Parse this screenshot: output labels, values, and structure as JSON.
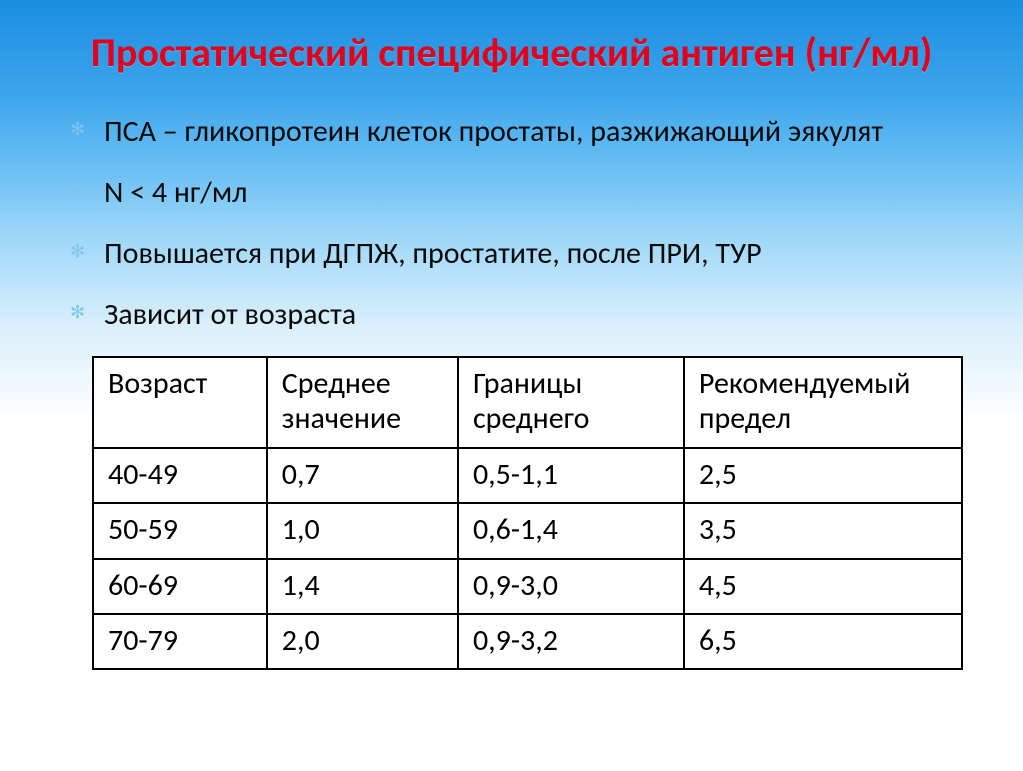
{
  "title": "Простатический специфический антиген (нг/мл)",
  "bullets": [
    "ПСА – гликопротеин  клеток простаты, разжижающий эякулят",
    "N < 4 нг/мл",
    "Повышается при ДГПЖ, простатите, после ПРИ, ТУР",
    "Зависит от возраста"
  ],
  "table": {
    "columns": [
      "Возраст",
      "Среднее значение",
      "Границы среднего",
      "Рекомендуемый предел"
    ],
    "rows": [
      [
        "40-49",
        "0,7",
        "0,5-1,1",
        "2,5"
      ],
      [
        "50-59",
        "1,0",
        "0,6-1,4",
        "3,5"
      ],
      [
        "60-69",
        "1,4",
        "0,9-3,0",
        "4,5"
      ],
      [
        "70-79",
        "2,0",
        "0,9-3,2",
        "6,5"
      ]
    ],
    "col_widths": [
      "20%",
      "22%",
      "26%",
      "32%"
    ],
    "border_color": "#000000",
    "background_color": "#ffffff",
    "font_size_pt": 30
  },
  "style": {
    "title_color": "#e2001a",
    "title_fontsize": 40,
    "bullet_fontsize": 30,
    "bullet_marker_color": "#7fc6ef",
    "bg_gradient_stops": [
      "#1a8de0",
      "#3ba5ec",
      "#6bc0f4",
      "#a5daf9",
      "#d9effc",
      "#ffffff"
    ]
  }
}
